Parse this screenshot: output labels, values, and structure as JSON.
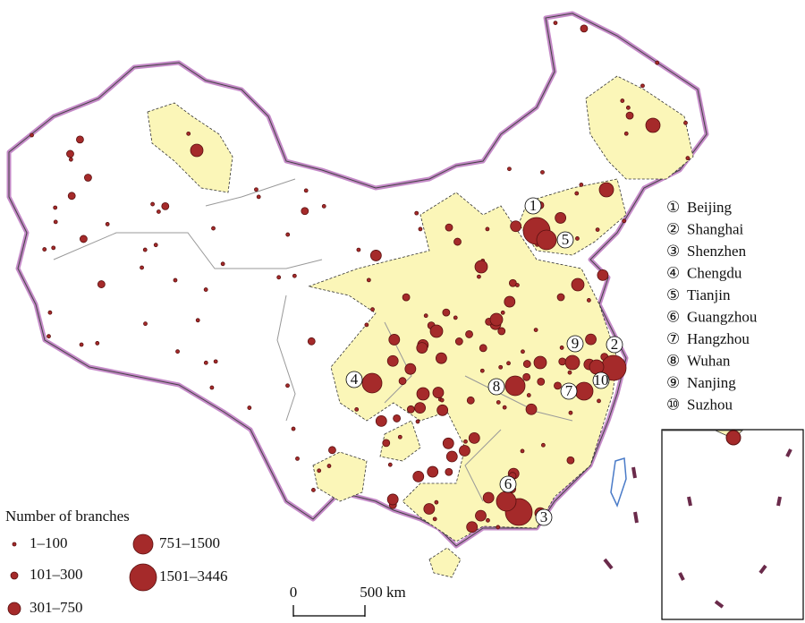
{
  "legend": {
    "title": "Number of branches",
    "classes": [
      "1–100",
      "101–300",
      "301–750",
      "751–1500",
      "1501–3446"
    ]
  },
  "cities": [
    {
      "num": "①",
      "name": "Beijing"
    },
    {
      "num": "②",
      "name": "Shanghai"
    },
    {
      "num": "③",
      "name": "Shenzhen"
    },
    {
      "num": "④",
      "name": "Chengdu"
    },
    {
      "num": "⑤",
      "name": "Tianjin"
    },
    {
      "num": "⑥",
      "name": "Guangzhou"
    },
    {
      "num": "⑦",
      "name": "Hangzhou"
    },
    {
      "num": "⑧",
      "name": "Wuhan"
    },
    {
      "num": "⑨",
      "name": "Nanjing"
    },
    {
      "num": "⑩",
      "name": "Suzhou"
    }
  ],
  "scale_bar": {
    "start": "0",
    "end": "500 km"
  }
}
